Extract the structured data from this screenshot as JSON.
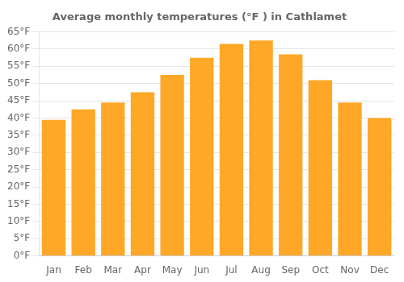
{
  "chart_data": {
    "type": "bar",
    "title": "Average monthly temperatures (°F ) in Cathlamet",
    "categories": [
      "Jan",
      "Feb",
      "Mar",
      "Apr",
      "May",
      "Jun",
      "Jul",
      "Aug",
      "Sep",
      "Oct",
      "Nov",
      "Dec"
    ],
    "values": [
      39.5,
      42.5,
      44.5,
      47.5,
      52.5,
      57.5,
      61.5,
      62.5,
      58.5,
      51.0,
      44.5,
      40.0
    ],
    "color": "#FFA726",
    "ylim": [
      0,
      65
    ],
    "yticks": [
      {
        "value": 0,
        "label": "0°F"
      },
      {
        "value": 5,
        "label": "5°F"
      },
      {
        "value": 10,
        "label": "10°F"
      },
      {
        "value": 15,
        "label": "15°F"
      },
      {
        "value": 20,
        "label": "20°F"
      },
      {
        "value": 25,
        "label": "25°F"
      },
      {
        "value": 30,
        "label": "30°F"
      },
      {
        "value": 35,
        "label": "35°F"
      },
      {
        "value": 40,
        "label": "40°F"
      },
      {
        "value": 45,
        "label": "45°F"
      },
      {
        "value": 50,
        "label": "50°F"
      },
      {
        "value": 55,
        "label": "55°F"
      },
      {
        "value": 60,
        "label": "60°F"
      },
      {
        "value": 65,
        "label": "65°F"
      }
    ],
    "grid": true
  }
}
